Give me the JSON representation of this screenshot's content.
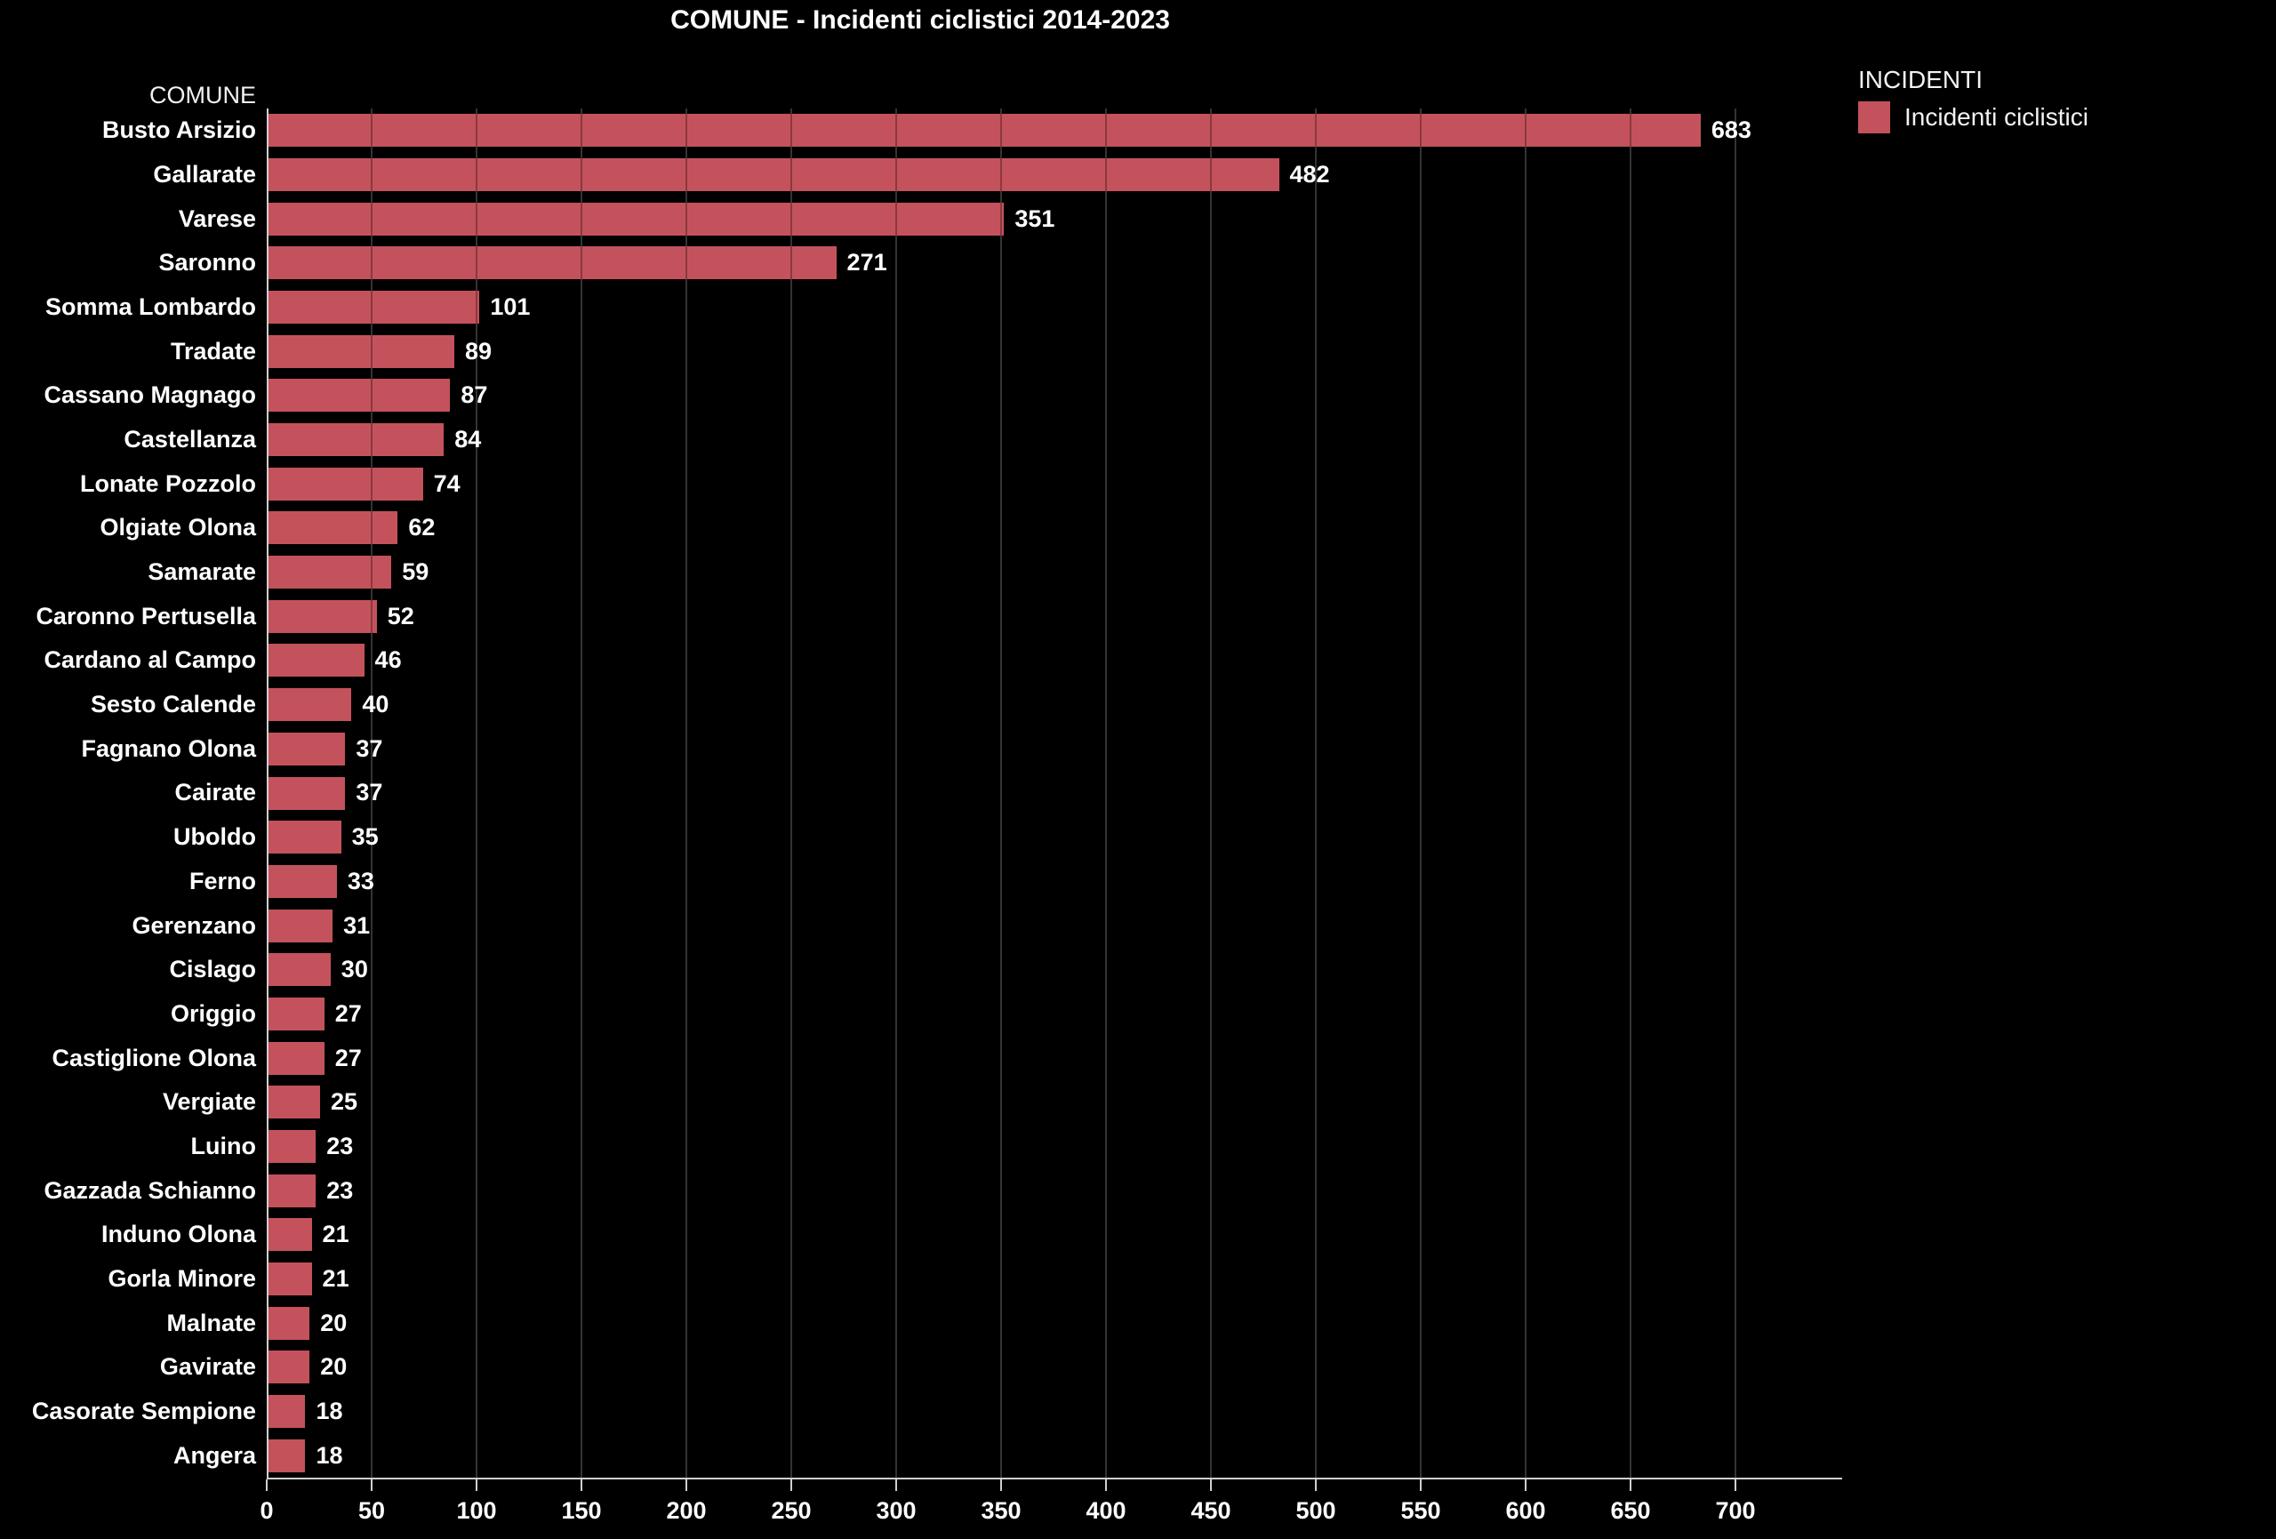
{
  "title": "COMUNE - Incidenti ciclistici 2014-2023",
  "axis_header": "COMUNE",
  "legend": {
    "title": "INCIDENTI",
    "items": [
      {
        "label": "Incidenti ciclistici",
        "color": "#C4525C"
      }
    ]
  },
  "colors": {
    "background": "#000000",
    "bar": "#C4525C",
    "gridline": "#4a4a4a",
    "axis_line": "#cfcfcf",
    "text": "#ffffff"
  },
  "chart_data": {
    "type": "bar",
    "orientation": "horizontal",
    "title": "COMUNE - Incidenti ciclistici 2014-2023",
    "ylabel": "COMUNE",
    "xlabel": "",
    "series_name": "Incidenti ciclistici",
    "categories": [
      "Busto Arsizio",
      "Gallarate",
      "Varese",
      "Saronno",
      "Somma Lombardo",
      "Tradate",
      "Cassano Magnago",
      "Castellanza",
      "Lonate Pozzolo",
      "Olgiate Olona",
      "Samarate",
      "Caronno Pertusella",
      "Cardano al Campo",
      "Sesto Calende",
      "Fagnano Olona",
      "Cairate",
      "Uboldo",
      "Ferno",
      "Gerenzano",
      "Cislago",
      "Origgio",
      "Castiglione Olona",
      "Vergiate",
      "Luino",
      "Gazzada Schianno",
      "Induno Olona",
      "Gorla Minore",
      "Malnate",
      "Gavirate",
      "Casorate Sempione",
      "Angera"
    ],
    "values": [
      683,
      482,
      351,
      271,
      101,
      89,
      87,
      84,
      74,
      62,
      59,
      52,
      46,
      40,
      37,
      37,
      35,
      33,
      31,
      30,
      27,
      27,
      25,
      23,
      23,
      21,
      21,
      20,
      20,
      18,
      18
    ],
    "xlim": [
      0,
      750
    ],
    "x_ticks": [
      0,
      50,
      100,
      150,
      200,
      250,
      300,
      350,
      400,
      450,
      500,
      550,
      600,
      650,
      700
    ],
    "grid": true,
    "legend_position": "top-right",
    "value_labels": true
  }
}
